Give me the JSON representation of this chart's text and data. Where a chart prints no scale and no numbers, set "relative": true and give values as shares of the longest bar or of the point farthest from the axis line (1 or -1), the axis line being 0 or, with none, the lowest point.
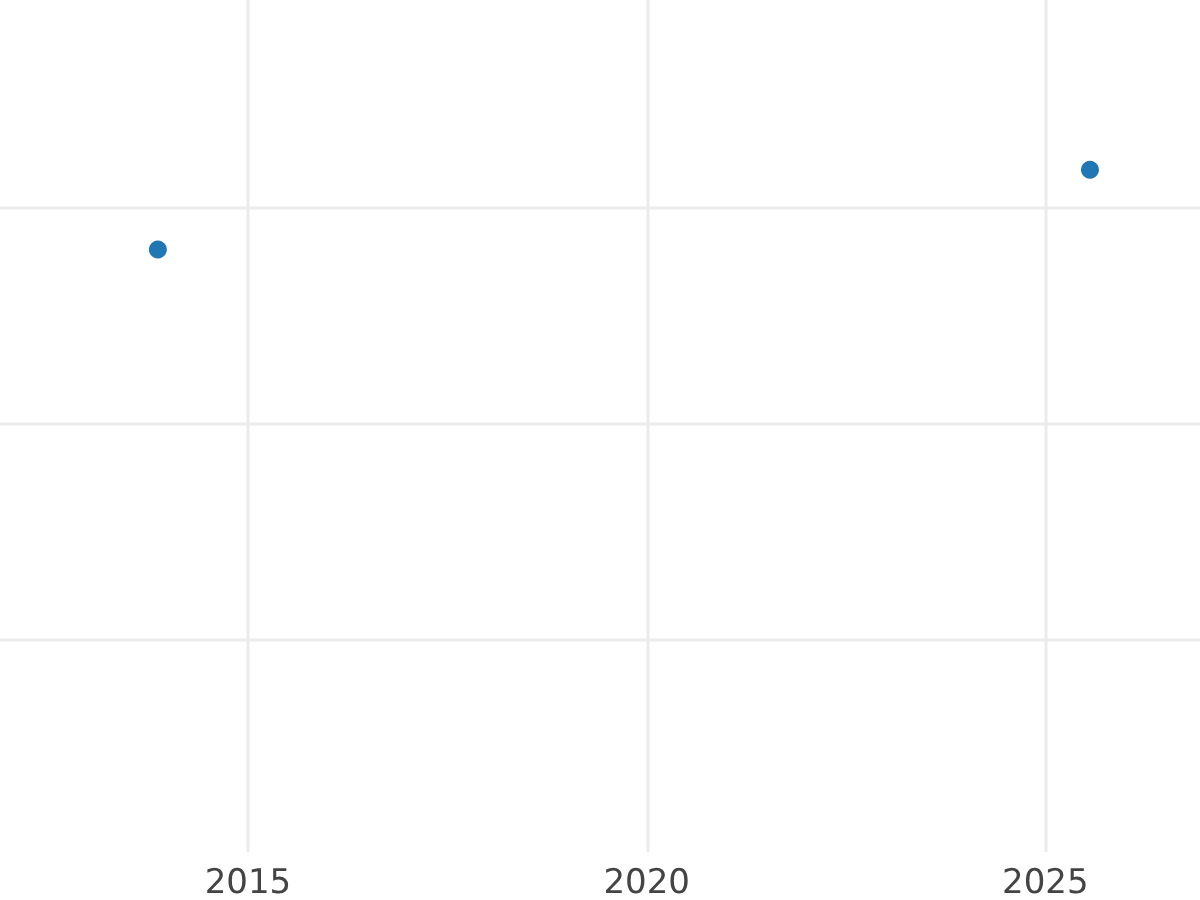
{
  "chart_data": {
    "type": "scatter",
    "x": [
      2013.87,
      2025.56
    ],
    "values": [
      0.83,
      1
    ],
    "color": "#1f77b4",
    "relative": true,
    "xlim": [
      2011.89,
      2026.94
    ],
    "xticks": [
      2015,
      2020,
      2025
    ],
    "grid": true,
    "marker": "circle",
    "tick_labels": "x"
  }
}
